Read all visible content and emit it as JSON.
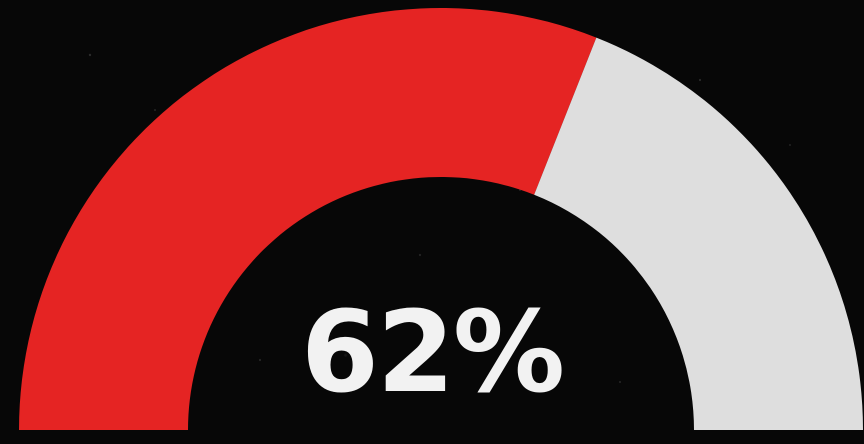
{
  "chart_data": {
    "type": "gauge",
    "value": 62,
    "min": 0,
    "max": 100,
    "value_label": "62%",
    "colors": {
      "filled": "#E52423",
      "remaining": "#DEDEDE",
      "background": "#070707",
      "text": "#F2F2F2"
    }
  }
}
